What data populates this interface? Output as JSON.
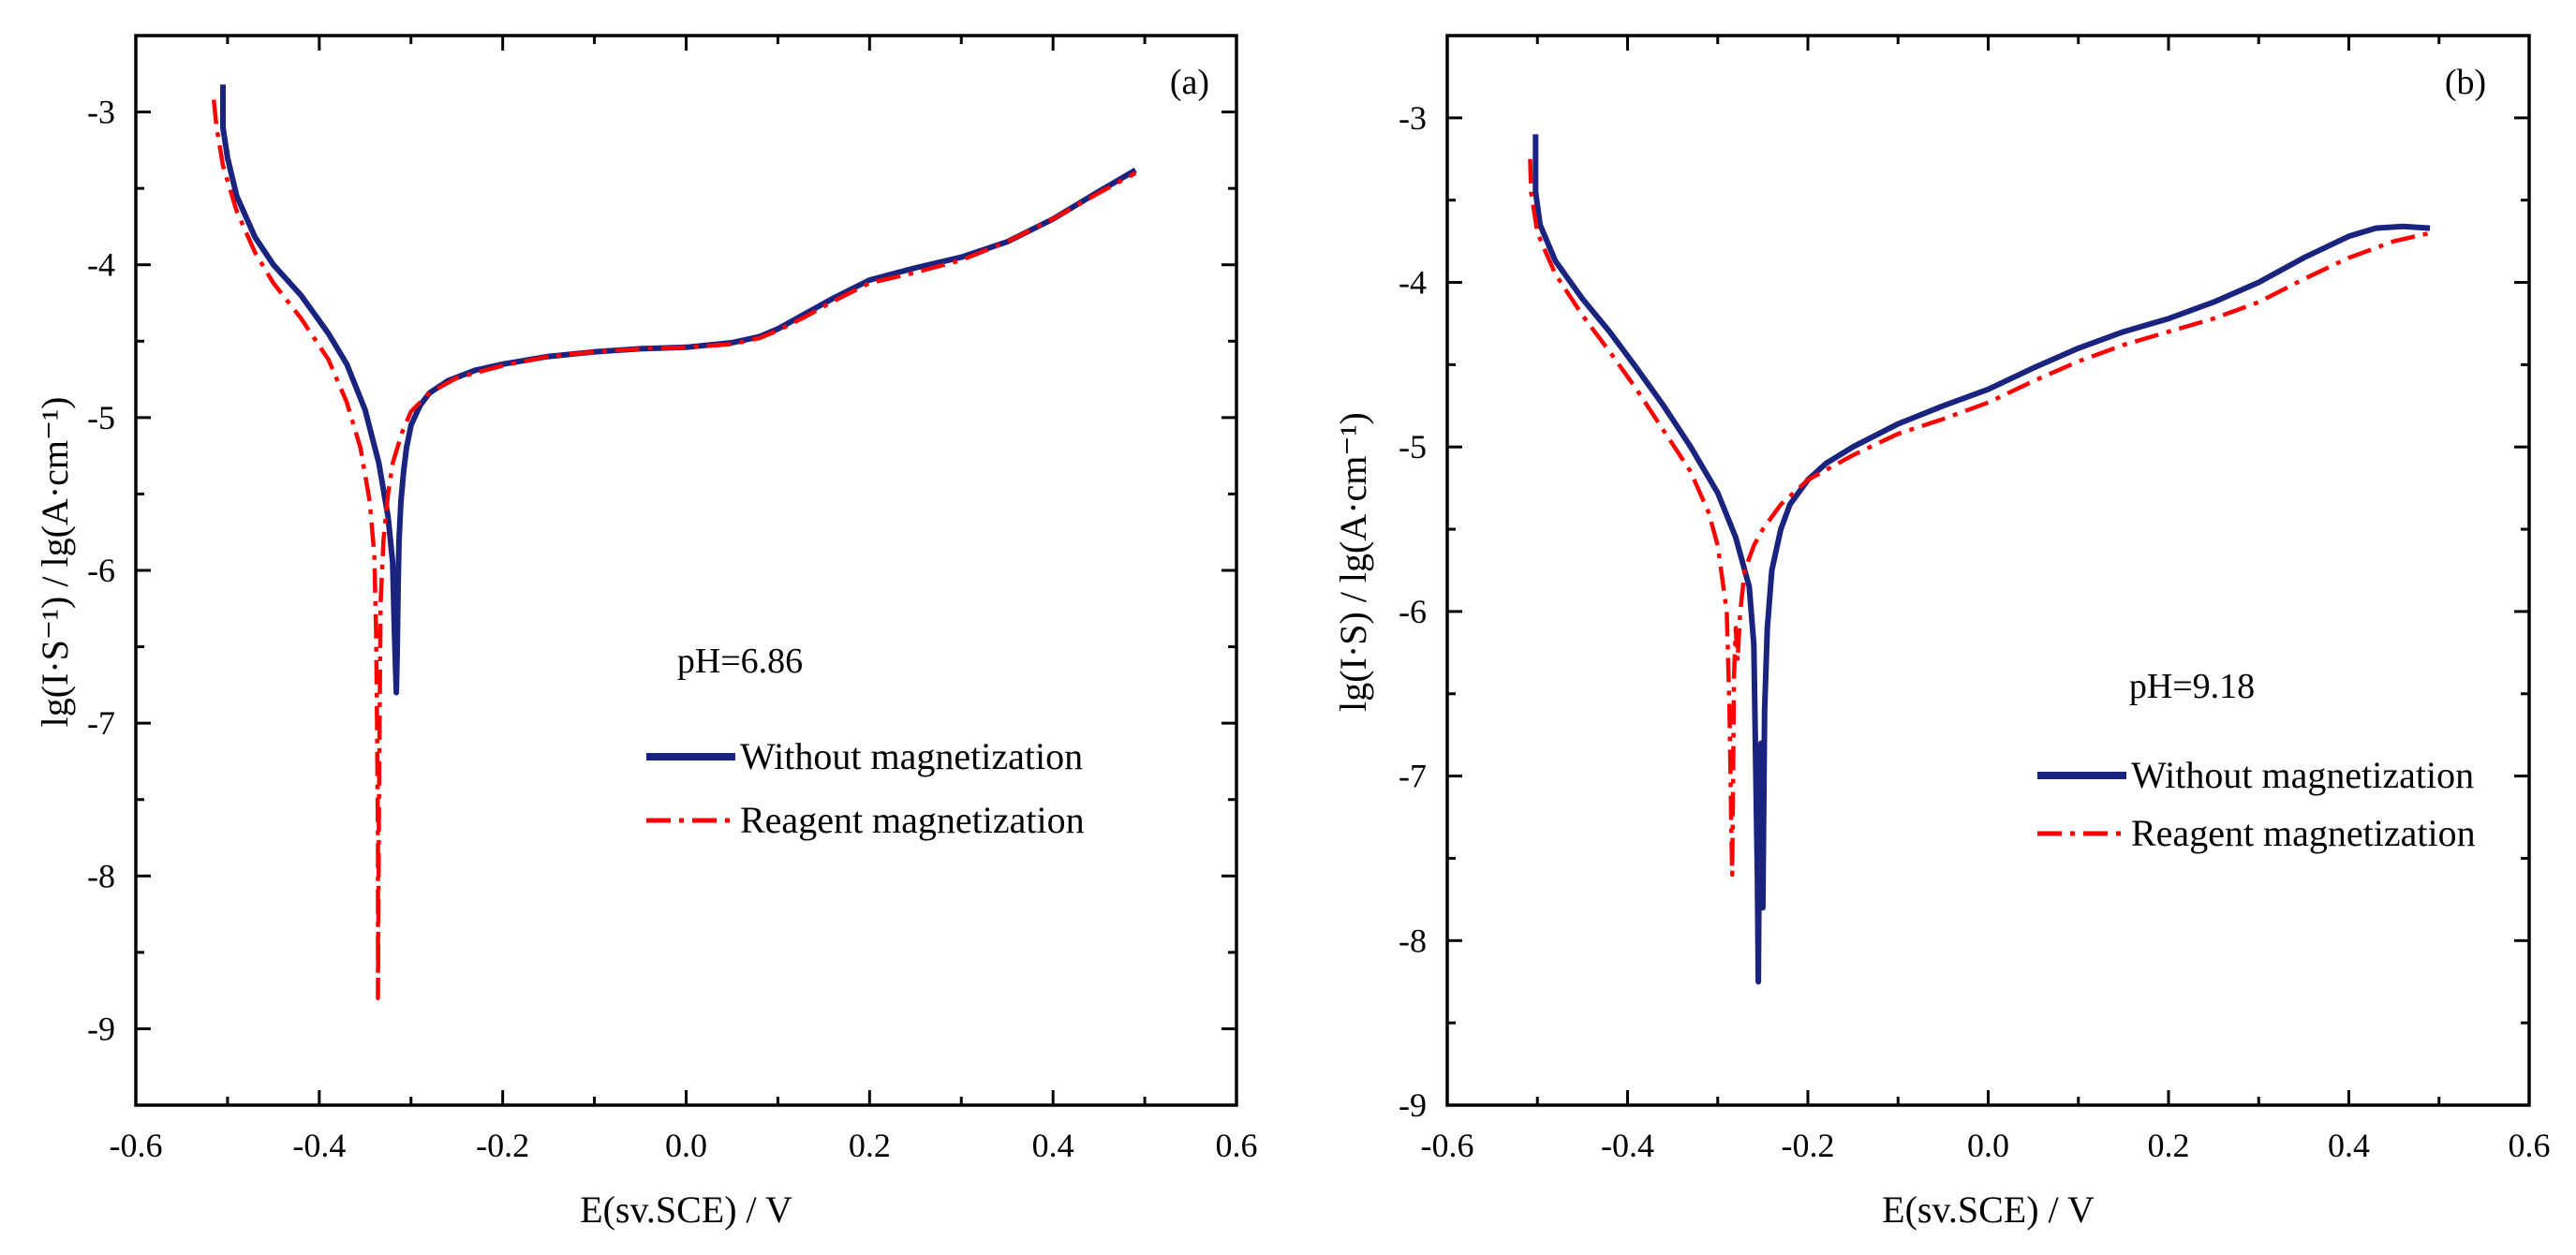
{
  "chart_data": [
    {
      "type": "line",
      "panel_label": "(a)",
      "annotation": "pH=6.86",
      "xlabel": "E(sv.SCE) / V",
      "ylabel": "lg(I·S⁻¹) / lg(A·cm⁻¹)",
      "xlim": [
        -0.6,
        0.6
      ],
      "ylim": [
        -9.5,
        -2.5
      ],
      "xticks": [
        -0.6,
        -0.4,
        -0.2,
        0.0,
        0.2,
        0.4,
        0.6
      ],
      "xtick_labels": [
        "-0.6",
        "-0.4",
        "-0.2",
        "0.0",
        "0.2",
        "0.4",
        "0.6"
      ],
      "yticks": [
        -9,
        -8,
        -7,
        -6,
        -5,
        -4,
        -3
      ],
      "ytick_labels": [
        "-9",
        "-8",
        "-7",
        "-6",
        "-5",
        "-4",
        "-3"
      ],
      "legend_placement": "lower-right",
      "series": [
        {
          "name": "Without magnetization",
          "color": "#1a237e",
          "style": "solid",
          "x": [
            -0.505,
            -0.505,
            -0.5,
            -0.49,
            -0.47,
            -0.45,
            -0.42,
            -0.39,
            -0.37,
            -0.35,
            -0.335,
            -0.325,
            -0.32,
            -0.318,
            -0.316,
            -0.315,
            -0.314,
            -0.313,
            -0.311,
            -0.308,
            -0.305,
            -0.3,
            -0.29,
            -0.28,
            -0.26,
            -0.23,
            -0.2,
            -0.15,
            -0.1,
            -0.05,
            0.0,
            0.05,
            0.08,
            0.1,
            0.13,
            0.16,
            0.2,
            0.25,
            0.3,
            0.35,
            0.4,
            0.45,
            0.49
          ],
          "y": [
            -2.82,
            -3.1,
            -3.3,
            -3.55,
            -3.82,
            -4.0,
            -4.2,
            -4.45,
            -4.65,
            -4.95,
            -5.3,
            -5.65,
            -5.95,
            -6.4,
            -6.8,
            -6.5,
            -6.1,
            -5.8,
            -5.55,
            -5.35,
            -5.2,
            -5.05,
            -4.92,
            -4.84,
            -4.76,
            -4.69,
            -4.65,
            -4.6,
            -4.57,
            -4.55,
            -4.54,
            -4.51,
            -4.47,
            -4.42,
            -4.32,
            -4.22,
            -4.1,
            -4.02,
            -3.95,
            -3.85,
            -3.7,
            -3.52,
            -3.38
          ]
        },
        {
          "name": "Reagent magnetization",
          "color": "#ff0000",
          "style": "dashdot",
          "x": [
            -0.515,
            -0.512,
            -0.505,
            -0.49,
            -0.47,
            -0.45,
            -0.42,
            -0.39,
            -0.37,
            -0.355,
            -0.345,
            -0.34,
            -0.338,
            -0.337,
            -0.336,
            -0.336,
            -0.335,
            -0.334,
            -0.333,
            -0.33,
            -0.325,
            -0.32,
            -0.31,
            -0.3,
            -0.28,
            -0.25,
            -0.2,
            -0.15,
            -0.1,
            -0.05,
            0.0,
            0.05,
            0.08,
            0.1,
            0.13,
            0.16,
            0.2,
            0.25,
            0.3,
            0.35,
            0.4,
            0.45,
            0.49
          ],
          "y": [
            -2.92,
            -3.1,
            -3.35,
            -3.65,
            -3.92,
            -4.12,
            -4.35,
            -4.62,
            -4.9,
            -5.2,
            -5.55,
            -5.9,
            -6.4,
            -7.0,
            -7.8,
            -8.8,
            -7.6,
            -6.8,
            -6.2,
            -5.8,
            -5.5,
            -5.3,
            -5.1,
            -4.96,
            -4.84,
            -4.74,
            -4.66,
            -4.6,
            -4.57,
            -4.55,
            -4.54,
            -4.52,
            -4.48,
            -4.43,
            -4.34,
            -4.24,
            -4.12,
            -4.05,
            -3.97,
            -3.85,
            -3.7,
            -3.53,
            -3.4
          ]
        }
      ]
    },
    {
      "type": "line",
      "panel_label": "(b)",
      "annotation": "pH=9.18",
      "xlabel": "E(sv.SCE) / V",
      "ylabel": "lg(I·S) / lg(A·cm⁻¹)",
      "xlim": [
        -0.6,
        0.6
      ],
      "ylim": [
        -9.0,
        -2.5
      ],
      "xticks": [
        -0.6,
        -0.4,
        -0.2,
        0.0,
        0.2,
        0.4,
        0.6
      ],
      "xtick_labels": [
        "-0.6",
        "-0.4",
        "-0.2",
        "0.0",
        "0.2",
        "0.4",
        "0.6"
      ],
      "yticks": [
        -9,
        -8,
        -7,
        -6,
        -5,
        -4,
        -3
      ],
      "ytick_labels": [
        "-9",
        "-8",
        "-7",
        "-6",
        "-5",
        "-4",
        "-3"
      ],
      "legend_placement": "lower-right",
      "series": [
        {
          "name": "Without magnetization",
          "color": "#1a237e",
          "style": "solid",
          "x": [
            -0.502,
            -0.502,
            -0.497,
            -0.48,
            -0.45,
            -0.42,
            -0.39,
            -0.36,
            -0.33,
            -0.3,
            -0.28,
            -0.265,
            -0.26,
            -0.258,
            -0.256,
            -0.255,
            -0.254,
            -0.252,
            -0.25,
            -0.248,
            -0.245,
            -0.24,
            -0.23,
            -0.22,
            -0.2,
            -0.18,
            -0.15,
            -0.1,
            -0.05,
            0.0,
            0.05,
            0.1,
            0.15,
            0.2,
            0.25,
            0.3,
            0.35,
            0.4,
            0.43,
            0.46,
            0.49
          ],
          "y": [
            -3.1,
            -3.45,
            -3.65,
            -3.87,
            -4.1,
            -4.3,
            -4.52,
            -4.75,
            -5.0,
            -5.28,
            -5.55,
            -5.85,
            -6.2,
            -6.9,
            -7.6,
            -8.25,
            -7.5,
            -6.8,
            -7.8,
            -6.6,
            -6.1,
            -5.75,
            -5.5,
            -5.35,
            -5.2,
            -5.1,
            -5.0,
            -4.86,
            -4.75,
            -4.65,
            -4.52,
            -4.4,
            -4.3,
            -4.22,
            -4.12,
            -4.0,
            -3.85,
            -3.72,
            -3.67,
            -3.66,
            -3.67
          ]
        },
        {
          "name": "Reagent magnetization",
          "color": "#ff0000",
          "style": "dashdot",
          "x": [
            -0.508,
            -0.507,
            -0.5,
            -0.48,
            -0.45,
            -0.42,
            -0.39,
            -0.36,
            -0.33,
            -0.31,
            -0.3,
            -0.29,
            -0.287,
            -0.285,
            -0.284,
            -0.283,
            -0.282,
            -0.28,
            -0.278,
            -0.275,
            -0.27,
            -0.26,
            -0.25,
            -0.23,
            -0.2,
            -0.15,
            -0.1,
            -0.05,
            0.0,
            0.05,
            0.1,
            0.15,
            0.2,
            0.25,
            0.3,
            0.35,
            0.4,
            0.45,
            0.49
          ],
          "y": [
            -3.25,
            -3.45,
            -3.7,
            -3.95,
            -4.2,
            -4.42,
            -4.65,
            -4.9,
            -5.15,
            -5.4,
            -5.6,
            -6.0,
            -6.6,
            -7.3,
            -7.6,
            -7.1,
            -6.4,
            -6.1,
            -6.3,
            -6.0,
            -5.75,
            -5.6,
            -5.5,
            -5.35,
            -5.2,
            -5.05,
            -4.92,
            -4.83,
            -4.73,
            -4.6,
            -4.48,
            -4.38,
            -4.3,
            -4.22,
            -4.12,
            -3.98,
            -3.85,
            -3.75,
            -3.7
          ]
        }
      ]
    }
  ]
}
